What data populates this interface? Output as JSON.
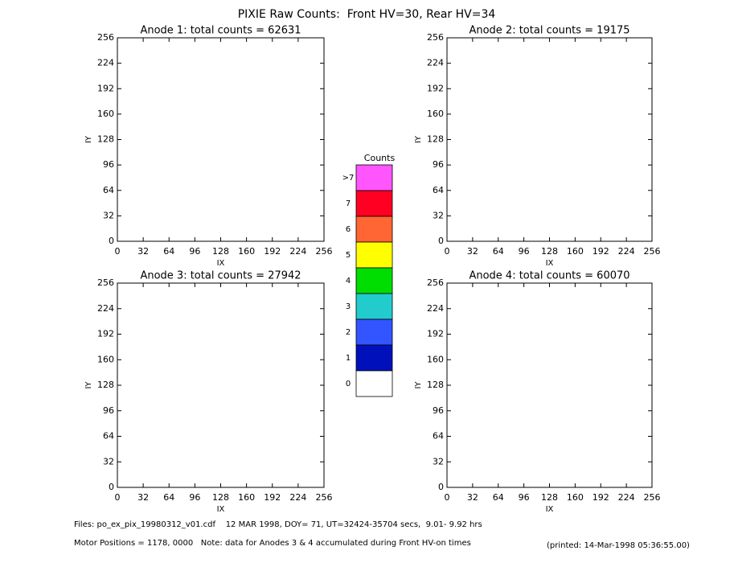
{
  "title": "PIXIE Raw Counts:  Front HV=30, Rear HV=34",
  "chart_data": [
    {
      "type": "image",
      "title": "Anode 1: total counts = 62631",
      "xlabel": "IX",
      "ylabel": "IY",
      "xlim": [
        0,
        256
      ],
      "ylim": [
        0,
        256
      ],
      "xticks": [
        0,
        32,
        64,
        96,
        128,
        160,
        192,
        224,
        256
      ],
      "yticks": [
        0,
        32,
        64,
        96,
        128,
        160,
        192,
        224,
        256
      ]
    },
    {
      "type": "image",
      "title": "Anode 2: total counts = 19175",
      "xlabel": "IX",
      "ylabel": "IY",
      "xlim": [
        0,
        256
      ],
      "ylim": [
        0,
        256
      ],
      "xticks": [
        0,
        32,
        64,
        96,
        128,
        160,
        192,
        224,
        256
      ],
      "yticks": [
        0,
        32,
        64,
        96,
        128,
        160,
        192,
        224,
        256
      ]
    },
    {
      "type": "image",
      "title": "Anode 3: total counts = 27942",
      "xlabel": "IX",
      "ylabel": "IY",
      "xlim": [
        0,
        256
      ],
      "ylim": [
        0,
        256
      ],
      "xticks": [
        0,
        32,
        64,
        96,
        128,
        160,
        192,
        224,
        256
      ],
      "yticks": [
        0,
        32,
        64,
        96,
        128,
        160,
        192,
        224,
        256
      ]
    },
    {
      "type": "image",
      "title": "Anode 4: total counts = 60070",
      "xlabel": "IX",
      "ylabel": "IY",
      "xlim": [
        0,
        256
      ],
      "ylim": [
        0,
        256
      ],
      "xticks": [
        0,
        32,
        64,
        96,
        128,
        160,
        192,
        224,
        256
      ],
      "yticks": [
        0,
        32,
        64,
        96,
        128,
        160,
        192,
        224,
        256
      ]
    }
  ],
  "colorbar": {
    "label": "Counts",
    "levels": [
      {
        "label": ">7",
        "color": "#ff55ff"
      },
      {
        "label": "7",
        "color": "#ff0022"
      },
      {
        "label": "6",
        "color": "#ff6633"
      },
      {
        "label": "5",
        "color": "#ffff00"
      },
      {
        "label": "4",
        "color": "#00dd00"
      },
      {
        "label": "3",
        "color": "#22cccc"
      },
      {
        "label": "2",
        "color": "#3355ff"
      },
      {
        "label": "1",
        "color": "#0011bb"
      },
      {
        "label": "0",
        "color": "#ffffff"
      }
    ]
  },
  "footer": {
    "files": "Files: po_ex_pix_19980312_v01.cdf    12 MAR 1998, DOY= 71, UT=32424-35704 secs,  9.01- 9.92 hrs",
    "motor": "Motor Positions = 1178, 0000   Note: data for Anodes 3 & 4 accumulated during Front HV-on times",
    "printed": "(printed: 14-Mar-1998 05:36:55.00)"
  }
}
